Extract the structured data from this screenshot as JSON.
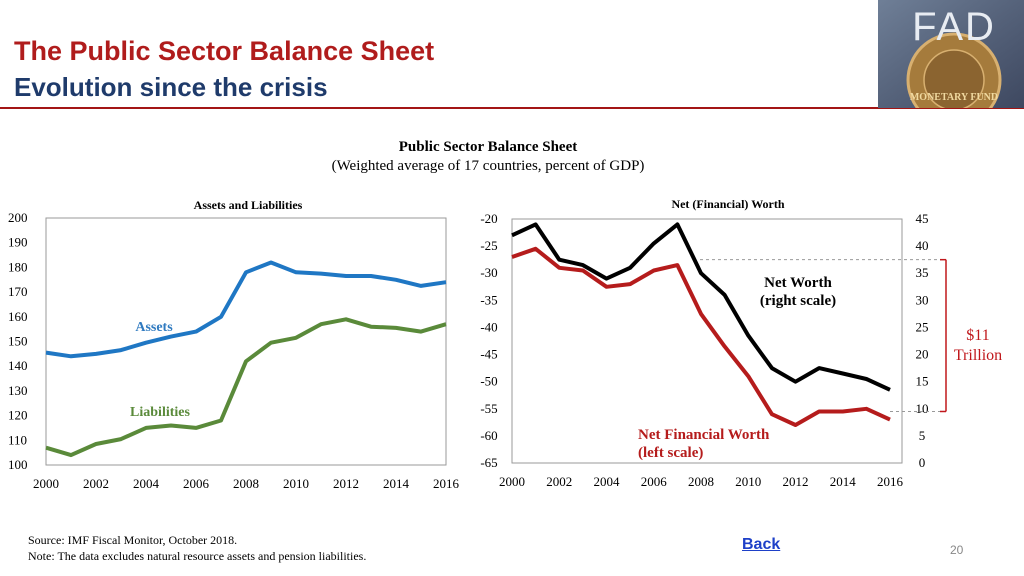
{
  "slide": {
    "title": "The Public Sector Balance Sheet",
    "subtitle": "Evolution since the crisis",
    "logo_text": "FAD",
    "logo_seal_text": "MONETARY FUND",
    "chart_heading": "Public Sector Balance Sheet",
    "chart_subheading": "(Weighted average of 17 countries, percent of GDP)",
    "source": "Source: IMF Fiscal Monitor, October 2018.",
    "note": "Note: The data excludes natural resource assets and pension liabilities.",
    "back_link": "Back",
    "page_number": "20",
    "colors": {
      "title": "#b01c1c",
      "subtitle": "#1f3b6b",
      "rule": "#a31515",
      "link": "#1e40c8"
    }
  },
  "chart_data": [
    {
      "type": "line",
      "title": "Assets and Liabilities",
      "x": [
        2000,
        2001,
        2002,
        2003,
        2004,
        2005,
        2006,
        2007,
        2008,
        2009,
        2010,
        2011,
        2012,
        2013,
        2014,
        2015,
        2016
      ],
      "xticks": [
        "2000",
        "2002",
        "2004",
        "2006",
        "2008",
        "2010",
        "2012",
        "2014",
        "2016"
      ],
      "yticks": [
        "200",
        "190",
        "180",
        "170",
        "160",
        "150",
        "140",
        "130",
        "120",
        "110",
        "100"
      ],
      "ylim": [
        100,
        200
      ],
      "series": [
        {
          "name": "Assets",
          "color": "#1f77c4",
          "values": [
            145.5,
            144,
            145,
            146.5,
            149.5,
            152,
            154,
            160,
            178,
            182,
            178,
            177.5,
            176.5,
            176.5,
            175,
            172.5,
            174
          ]
        },
        {
          "name": "Liabilities",
          "color": "#5a8a3a",
          "values": [
            107,
            104,
            108.5,
            110.5,
            115,
            116,
            115,
            118,
            142,
            149.5,
            151.5,
            157,
            159,
            156,
            155.5,
            154,
            157
          ]
        }
      ]
    },
    {
      "type": "line",
      "title": "Net (Financial) Worth",
      "x": [
        2000,
        2001,
        2002,
        2003,
        2004,
        2005,
        2006,
        2007,
        2008,
        2009,
        2010,
        2011,
        2012,
        2013,
        2014,
        2015,
        2016
      ],
      "xticks": [
        "2000",
        "2002",
        "2004",
        "2006",
        "2008",
        "2010",
        "2012",
        "2014",
        "2016"
      ],
      "left_axis": {
        "ticks": [
          "-20",
          "-25",
          "-30",
          "-35",
          "-40",
          "-45",
          "-50",
          "-55",
          "-60",
          "-65"
        ],
        "ylim": [
          -65,
          -20
        ]
      },
      "right_axis": {
        "ticks": [
          "45",
          "40",
          "35",
          "30",
          "25",
          "20",
          "15",
          "10",
          "5",
          "0"
        ],
        "ylim": [
          0,
          45
        ]
      },
      "series": [
        {
          "name": "Net Worth",
          "label_line1": "Net Worth",
          "label_line2": "(right scale)",
          "axis": "right",
          "color": "#000000",
          "values": [
            42,
            44,
            37.5,
            36.5,
            34,
            36,
            40.5,
            44,
            35,
            31,
            23.5,
            17.5,
            15,
            17.5,
            16.5,
            15.5,
            13.5
          ]
        },
        {
          "name": "Net Financial Worth",
          "label_line1": "Net Financial Worth",
          "label_line2": "(left scale)",
          "axis": "left",
          "color": "#b51c1c",
          "values": [
            -27,
            -25.5,
            -29,
            -29.5,
            -32.5,
            -32,
            -29.5,
            -28.5,
            -37.5,
            -43.5,
            -49,
            -56,
            -58,
            -55.5,
            -55.5,
            -55,
            -57
          ]
        }
      ],
      "annotation": {
        "line1": "$11",
        "line2": "Trillion",
        "from_value": 37.5,
        "to_value": 9.5,
        "color": "#c0181c"
      }
    }
  ]
}
